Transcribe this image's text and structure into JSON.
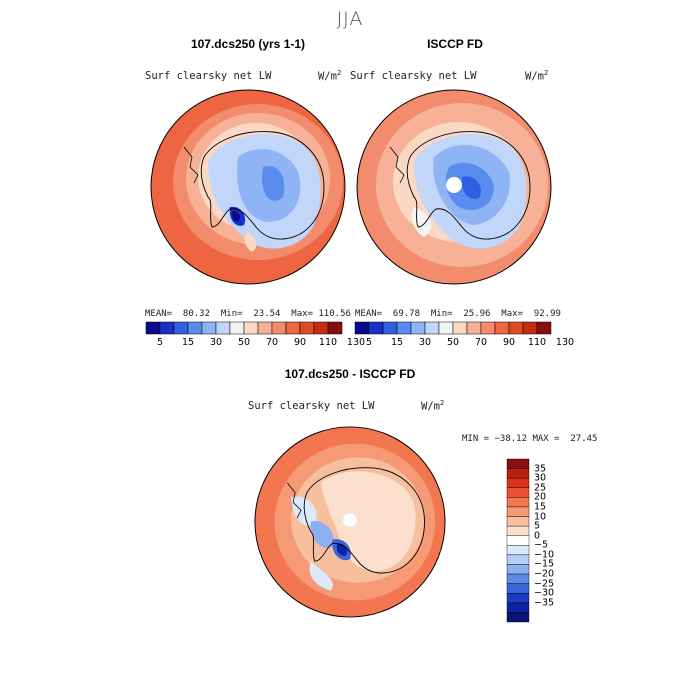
{
  "title": "JJA",
  "panels": [
    {
      "id": "model",
      "title": "107.dcs250 (yrs 1-1)",
      "variable": "Surf clearsky net LW",
      "units": "W/m",
      "units_sup": "2",
      "stats": "MEAN=  80.32  Min=  23.54  Max= 110.56",
      "mean": 80.32,
      "min": 23.54,
      "max": 110.56
    },
    {
      "id": "obs",
      "title": "ISCCP FD",
      "variable": "Surf clearsky net LW",
      "units": "W/m",
      "units_sup": "2",
      "stats": "MEAN=  69.78  Min=  25.96  Max=  92.99",
      "mean": 69.78,
      "min": 25.96,
      "max": 92.99
    },
    {
      "id": "diff",
      "title": "107.dcs250 - ISCCP FD",
      "variable": "Surf clearsky net LW",
      "units": "W/m",
      "units_sup": "2",
      "stats": "MIN = −38.12 MAX =  27.45",
      "min": -38.12,
      "max": 27.45
    }
  ],
  "colorbar_abs": {
    "colors": [
      "#0a0a8a",
      "#1a2fc8",
      "#2f60e0",
      "#5a8cf0",
      "#8fb4f6",
      "#c2d6fa",
      "#f4f4f4",
      "#fad8c4",
      "#f7b196",
      "#f38c6c",
      "#ed6641",
      "#de4a26",
      "#c22d14",
      "#8a0d0d"
    ],
    "tick_labels": [
      "5",
      "15",
      "30",
      "50",
      "70",
      "90",
      "110",
      "130"
    ]
  },
  "colorbar_diff": {
    "colors": [
      "#8a0f0f",
      "#b7200f",
      "#d9341a",
      "#ec5231",
      "#f2764f",
      "#f59a75",
      "#f8bf9f",
      "#fbe0cd",
      "#ffffff",
      "#dce9fb",
      "#b6cef5",
      "#8cb0ef",
      "#5e89e6",
      "#3a63d7",
      "#1e3cc2",
      "#0e23a3",
      "#07157a"
    ],
    "labels": [
      "35",
      "30",
      "25",
      "20",
      "15",
      "10",
      "5",
      "0",
      "−5",
      "−10",
      "−15",
      "−20",
      "−25",
      "−30",
      "−35"
    ]
  }
}
